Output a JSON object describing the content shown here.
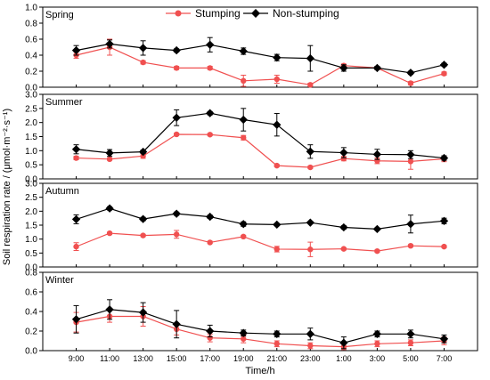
{
  "chart_data": {
    "type": "line",
    "ylabel": "Soil respiration rate / (μmol·m⁻²·s⁻¹)",
    "xlabel": "Time/h",
    "categories": [
      "9:00",
      "11:00",
      "13:00",
      "15:00",
      "17:00",
      "19:00",
      "21:00",
      "23:00",
      "1:00",
      "3:00",
      "5:00",
      "7:00"
    ],
    "legend": {
      "placement": "top-center"
    },
    "series_names": [
      "Stumping",
      "Non-stumping"
    ],
    "colors": {
      "stumping": "#f05050",
      "non_stumping": "#000000"
    },
    "panels": [
      {
        "title": "Spring",
        "ylim": [
          0,
          1.0
        ],
        "yticks": [
          "0.0",
          "0.2",
          "0.4",
          "0.6",
          "0.8",
          "1.0"
        ],
        "series": [
          {
            "name": "Stumping",
            "values": [
              0.4,
              0.5,
              0.31,
              0.24,
              0.24,
              0.08,
              0.1,
              0.03,
              0.27,
              0.24,
              0.05,
              0.17
            ],
            "errors": [
              0.04,
              0.1,
              0.02,
              0.02,
              0.02,
              0.07,
              0.05,
              0.02,
              0.02,
              0.02,
              0.02,
              0.02
            ]
          },
          {
            "name": "Non-stumping",
            "values": [
              0.46,
              0.54,
              0.49,
              0.46,
              0.53,
              0.45,
              0.37,
              0.36,
              0.24,
              0.24,
              0.18,
              0.28
            ],
            "errors": [
              0.06,
              0.05,
              0.09,
              0.02,
              0.09,
              0.04,
              0.04,
              0.16,
              0.04,
              0.02,
              0.02,
              0.02
            ]
          }
        ]
      },
      {
        "title": "Summer",
        "ylim": [
          0,
          3.0
        ],
        "yticks": [
          "0.0",
          "0.5",
          "1.0",
          "1.5",
          "2.0",
          "2.5",
          "3.0"
        ],
        "series": [
          {
            "name": "Stumping",
            "values": [
              0.74,
              0.7,
              0.81,
              1.58,
              1.57,
              1.46,
              0.47,
              0.41,
              0.72,
              0.64,
              0.62,
              0.71
            ],
            "errors": [
              0.06,
              0.04,
              0.08,
              0.04,
              0.04,
              0.08,
              0.04,
              0.04,
              0.08,
              0.1,
              0.28,
              0.1
            ]
          },
          {
            "name": "Non-stumping",
            "values": [
              1.05,
              0.92,
              0.96,
              2.17,
              2.33,
              2.1,
              1.92,
              0.97,
              0.93,
              0.87,
              0.86,
              0.74
            ],
            "errors": [
              0.16,
              0.12,
              0.06,
              0.28,
              0.06,
              0.4,
              0.4,
              0.24,
              0.18,
              0.18,
              0.14,
              0.08
            ]
          }
        ]
      },
      {
        "title": "Autumn",
        "ylim": [
          0,
          3.0
        ],
        "yticks": [
          "0.0",
          "0.5",
          "1.0",
          "1.5",
          "2.0",
          "2.5",
          "3.0"
        ],
        "series": [
          {
            "name": "Stumping",
            "values": [
              0.73,
              1.21,
              1.13,
              1.17,
              0.88,
              1.09,
              0.64,
              0.63,
              0.65,
              0.57,
              0.76,
              0.73
            ],
            "errors": [
              0.14,
              0.04,
              0.04,
              0.14,
              0.04,
              0.04,
              0.1,
              0.26,
              0.04,
              0.04,
              0.04,
              0.04
            ]
          },
          {
            "name": "Non-stumping",
            "values": [
              1.71,
              2.1,
              1.72,
              1.91,
              1.8,
              1.54,
              1.52,
              1.59,
              1.42,
              1.36,
              1.54,
              1.65
            ],
            "errors": [
              0.16,
              0.06,
              0.06,
              0.06,
              0.06,
              0.08,
              0.04,
              0.04,
              0.06,
              0.04,
              0.32,
              0.1
            ]
          }
        ]
      },
      {
        "title": "Winter",
        "ylim": [
          0,
          0.8
        ],
        "yticks": [
          "0.0",
          "0.2",
          "0.4",
          "0.6",
          "0.8"
        ],
        "series": [
          {
            "name": "Stumping",
            "values": [
              0.29,
              0.35,
              0.35,
              0.22,
              0.13,
              0.12,
              0.07,
              0.05,
              0.04,
              0.07,
              0.08,
              0.1
            ],
            "errors": [
              0.1,
              0.06,
              0.1,
              0.06,
              0.04,
              0.04,
              0.03,
              0.03,
              0.03,
              0.03,
              0.03,
              0.04
            ]
          },
          {
            "name": "Non-stumping",
            "values": [
              0.32,
              0.42,
              0.39,
              0.27,
              0.2,
              0.18,
              0.17,
              0.17,
              0.08,
              0.17,
              0.17,
              0.12
            ],
            "errors": [
              0.14,
              0.1,
              0.1,
              0.14,
              0.06,
              0.03,
              0.03,
              0.06,
              0.06,
              0.03,
              0.04,
              0.04
            ]
          }
        ]
      }
    ]
  }
}
